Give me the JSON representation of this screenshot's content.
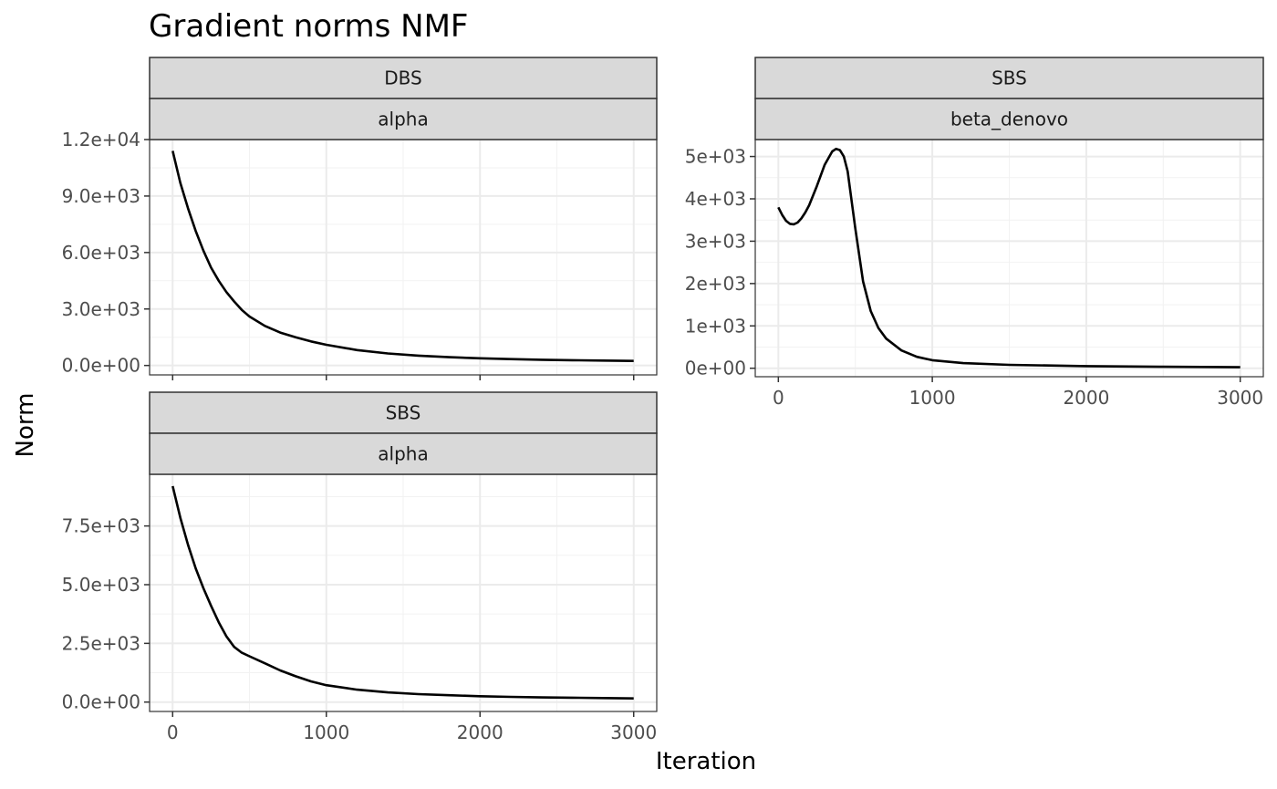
{
  "chart_data": {
    "type": "line",
    "title": "Gradient norms NMF",
    "xlabel": "Iteration",
    "ylabel": "Norm",
    "grid": true,
    "panels": [
      {
        "id": "dbs-alpha",
        "strip": [
          "DBS",
          "alpha"
        ],
        "xlim": [
          -150,
          3150
        ],
        "ylim": [
          -500,
          12000
        ],
        "y_ticks": [
          0,
          3000,
          6000,
          9000,
          12000
        ],
        "y_tick_labels": [
          "0.0e+00",
          "3.0e+03",
          "6.0e+03",
          "9.0e+03",
          "1.2e+04"
        ],
        "x_ticks": [],
        "x_tick_labels": [],
        "series": [
          {
            "x": [
              0,
              50,
              100,
              150,
              200,
              250,
              300,
              350,
              400,
              450,
              500,
              600,
              700,
              800,
              900,
              1000,
              1200,
              1400,
              1600,
              1800,
              2000,
              2200,
              2400,
              2600,
              2800,
              3000
            ],
            "y": [
              11400,
              9700,
              8350,
              7150,
              6100,
              5200,
              4500,
              3900,
              3400,
              2950,
              2600,
              2100,
              1750,
              1500,
              1280,
              1100,
              820,
              640,
              520,
              440,
              380,
              340,
              305,
              280,
              260,
              240
            ]
          }
        ]
      },
      {
        "id": "sbs-beta-denovo",
        "strip": [
          "SBS",
          "beta_denovo"
        ],
        "xlim": [
          -150,
          3150
        ],
        "ylim": [
          -200,
          5400
        ],
        "y_ticks": [
          0,
          1000,
          2000,
          3000,
          4000,
          5000
        ],
        "y_tick_labels": [
          "0e+00",
          "1e+03",
          "2e+03",
          "3e+03",
          "4e+03",
          "5e+03"
        ],
        "x_ticks": [
          0,
          1000,
          2000,
          3000
        ],
        "x_tick_labels": [
          "0",
          "1000",
          "2000",
          "3000"
        ],
        "series": [
          {
            "x": [
              0,
              25,
              50,
              75,
              100,
              125,
              150,
              175,
              200,
              250,
              300,
              350,
              375,
              400,
              425,
              450,
              500,
              550,
              600,
              650,
              700,
              800,
              900,
              1000,
              1200,
              1500,
              2000,
              2500,
              3000
            ],
            "y": [
              3800,
              3620,
              3480,
              3410,
              3400,
              3440,
              3540,
              3680,
              3850,
              4300,
              4800,
              5120,
              5180,
              5150,
              5000,
              4650,
              3300,
              2050,
              1350,
              950,
              700,
              420,
              270,
              190,
              120,
              80,
              50,
              35,
              25
            ]
          }
        ]
      },
      {
        "id": "sbs-alpha",
        "strip": [
          "SBS",
          "alpha"
        ],
        "xlim": [
          -150,
          3150
        ],
        "ylim": [
          -400,
          9700
        ],
        "y_ticks": [
          0,
          2500,
          5000,
          7500
        ],
        "y_tick_labels": [
          "0.0e+00",
          "2.5e+03",
          "5.0e+03",
          "7.5e+03"
        ],
        "x_ticks": [
          0,
          1000,
          2000,
          3000
        ],
        "x_tick_labels": [
          "0",
          "1000",
          "2000",
          "3000"
        ],
        "series": [
          {
            "x": [
              0,
              50,
              100,
              150,
              200,
              250,
              300,
              350,
              400,
              450,
              500,
              600,
              700,
              800,
              900,
              1000,
              1200,
              1400,
              1600,
              1800,
              2000,
              2200,
              2400,
              2600,
              2800,
              3000
            ],
            "y": [
              9200,
              7850,
              6700,
              5700,
              4850,
              4100,
              3400,
              2800,
              2350,
              2100,
              1950,
              1650,
              1350,
              1100,
              880,
              720,
              530,
              410,
              340,
              290,
              250,
              220,
              200,
              185,
              170,
              155
            ]
          }
        ]
      }
    ]
  }
}
